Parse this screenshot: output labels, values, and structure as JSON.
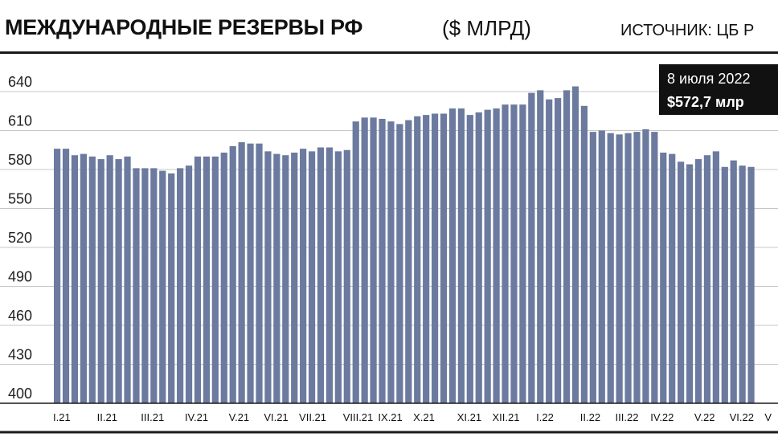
{
  "header": {
    "title": "МЕЖДУНАРОДНЫЕ РЕЗЕРВЫ РФ",
    "unit": "($ МЛРД)",
    "source": "ИСТОЧНИК: ЦБ Р"
  },
  "colors": {
    "bar": "#6b7a9e",
    "grid": "#c7c7c7",
    "rule": "#1a1a1a",
    "callout": "#111111"
  },
  "chart_data": {
    "type": "bar",
    "ylim": [
      400,
      650
    ],
    "yticks": [
      400,
      430,
      460,
      490,
      520,
      550,
      580,
      610,
      640
    ],
    "grid": true,
    "xtick_labels": [
      {
        "label": "I.21",
        "index": 0
      },
      {
        "label": "II.21",
        "index": 5
      },
      {
        "label": "III.21",
        "index": 10
      },
      {
        "label": "IV.21",
        "index": 15
      },
      {
        "label": "V.21",
        "index": 20
      },
      {
        "label": "VI.21",
        "index": 24
      },
      {
        "label": "VII.21",
        "index": 28
      },
      {
        "label": "VIII.21",
        "index": 33
      },
      {
        "label": "IX.21",
        "index": 37
      },
      {
        "label": "X.21",
        "index": 41
      },
      {
        "label": "XI.21",
        "index": 46
      },
      {
        "label": "XII.21",
        "index": 50
      },
      {
        "label": "I.22",
        "index": 55
      },
      {
        "label": "II.22",
        "index": 60
      },
      {
        "label": "III.22",
        "index": 64
      },
      {
        "label": "IV.22",
        "index": 68
      },
      {
        "label": "V.22",
        "index": 73
      },
      {
        "label": "VI.22",
        "index": 77
      },
      {
        "label": "V",
        "index": 81
      }
    ],
    "values": [
      596,
      596,
      591,
      592,
      590,
      588,
      591,
      588,
      590,
      581,
      581,
      581,
      579,
      577,
      581,
      583,
      590,
      590,
      590,
      593,
      598,
      601,
      600,
      600,
      594,
      592,
      591,
      593,
      596,
      594,
      597,
      597,
      594,
      595,
      617,
      620,
      620,
      619,
      617,
      615,
      618,
      621,
      622,
      623,
      623,
      627,
      627,
      622,
      624,
      626,
      627,
      630,
      630,
      630,
      639,
      641,
      634,
      635,
      641,
      644,
      629,
      609,
      610,
      608,
      607,
      608,
      609,
      611,
      609,
      593,
      592,
      586,
      584,
      588,
      591,
      594,
      582,
      587,
      583,
      582
    ],
    "annotation": {
      "date": "8 июля 2022",
      "value_label": "$572,7 млр"
    }
  }
}
